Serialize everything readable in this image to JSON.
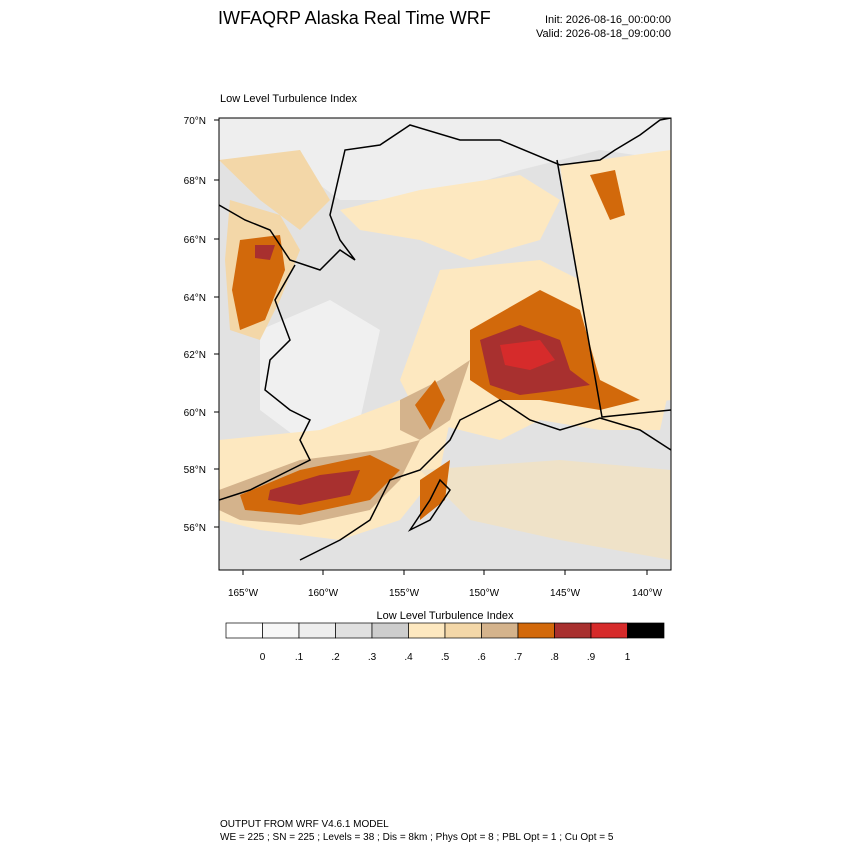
{
  "header": {
    "title": "IWFAQRP Alaska Real Time WRF",
    "init": "Init: 2026-08-16_00:00:00",
    "valid": "Valid: 2026-08-18_09:00:00"
  },
  "map": {
    "title": "Low Level Turbulence Index",
    "lat_labels": [
      "70°N",
      "68°N",
      "66°N",
      "64°N",
      "62°N",
      "60°N",
      "58°N",
      "56°N"
    ],
    "lon_labels": [
      "165°W",
      "160°W",
      "155°W",
      "150°W",
      "145°W",
      "140°W"
    ]
  },
  "colorbar": {
    "title": "Low Level Turbulence Index",
    "colors": [
      "#ffffff",
      "#f7f7f7",
      "#eeeeee",
      "#e0e0e0",
      "#cdcdcd",
      "#fde8c0",
      "#f3d7a8",
      "#d4b38c",
      "#d2690b",
      "#a8302f",
      "#d62b2b",
      "#000000"
    ],
    "labels": [
      "0",
      ".1",
      ".2",
      ".3",
      ".4",
      ".5",
      ".6",
      ".7",
      ".8",
      ".9",
      "1"
    ]
  },
  "footer": {
    "line1": "OUTPUT FROM WRF V4.6.1 MODEL",
    "line2": "WE = 225 ; SN = 225 ; Levels = 38 ; Dis = 8km ; Phys Opt = 8 ; PBL Opt = 1 ; Cu Opt = 5"
  }
}
